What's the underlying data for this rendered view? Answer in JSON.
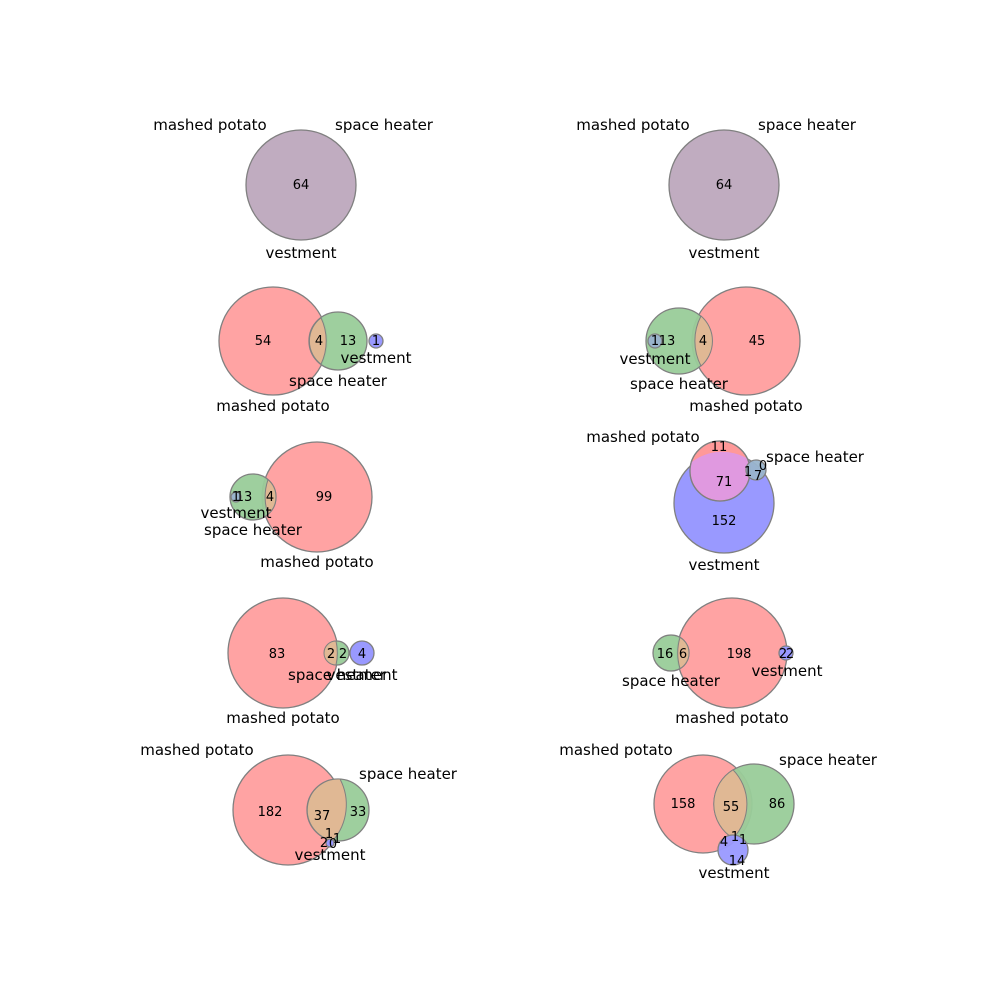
{
  "colors": {
    "mashed_potato": "#ff9999",
    "space_heater": "#99cc99",
    "vestment": "#9999ff",
    "overlap_mp_sh": "#e0b894",
    "overlap_mp_v": "#e099e0",
    "overlap_sh_v": "#99b4cc",
    "overlap_all": "#c0acc0",
    "outline": "#808080"
  },
  "set_names": [
    "mashed potato",
    "space heater",
    "vestment"
  ],
  "diagrams": [
    {
      "id": "d1",
      "regions": [
        {
          "key": "all",
          "value": "64"
        }
      ]
    },
    {
      "id": "d2",
      "regions": [
        {
          "key": "all",
          "value": "64"
        }
      ]
    },
    {
      "id": "d3",
      "regions": [
        {
          "key": "mp_only",
          "value": "54"
        },
        {
          "key": "mp_sh",
          "value": "4"
        },
        {
          "key": "sh_only",
          "value": "13"
        },
        {
          "key": "v_only",
          "value": "1"
        }
      ]
    },
    {
      "id": "d4",
      "regions": [
        {
          "key": "v_only",
          "value": "1"
        },
        {
          "key": "sh_only",
          "value": "13"
        },
        {
          "key": "mp_sh",
          "value": "4"
        },
        {
          "key": "mp_only",
          "value": "45"
        }
      ]
    },
    {
      "id": "d5",
      "regions": [
        {
          "key": "v_only",
          "value": "1"
        },
        {
          "key": "sh_only",
          "value": "13"
        },
        {
          "key": "mp_sh",
          "value": "4"
        },
        {
          "key": "mp_only",
          "value": "99"
        }
      ]
    },
    {
      "id": "d6",
      "regions": [
        {
          "key": "mp_only",
          "value": "11"
        },
        {
          "key": "sh_only",
          "value": "0"
        },
        {
          "key": "mp_sh_v",
          "value": "1"
        },
        {
          "key": "sh_v",
          "value": "7"
        },
        {
          "key": "mp_v",
          "value": "71"
        },
        {
          "key": "v_only",
          "value": "152"
        }
      ]
    },
    {
      "id": "d7",
      "regions": [
        {
          "key": "mp_only",
          "value": "83"
        },
        {
          "key": "mp_sh",
          "value": "2"
        },
        {
          "key": "sh_only",
          "value": "2"
        },
        {
          "key": "v_only",
          "value": "4"
        }
      ]
    },
    {
      "id": "d8",
      "regions": [
        {
          "key": "sh_only",
          "value": "16"
        },
        {
          "key": "mp_sh",
          "value": "6"
        },
        {
          "key": "mp_only",
          "value": "198"
        },
        {
          "key": "mp_v",
          "value": "2"
        },
        {
          "key": "v_only",
          "value": "2"
        }
      ]
    },
    {
      "id": "d9",
      "regions": [
        {
          "key": "mp_only",
          "value": "182"
        },
        {
          "key": "mp_sh",
          "value": "37"
        },
        {
          "key": "sh_only",
          "value": "33"
        },
        {
          "key": "mp_sh_v",
          "value": "1"
        },
        {
          "key": "sh_v",
          "value": "1"
        },
        {
          "key": "mp_v",
          "value": "2"
        },
        {
          "key": "v_only",
          "value": "0"
        }
      ]
    },
    {
      "id": "d10",
      "regions": [
        {
          "key": "mp_only",
          "value": "158"
        },
        {
          "key": "mp_sh",
          "value": "55"
        },
        {
          "key": "sh_only",
          "value": "86"
        },
        {
          "key": "mp_v",
          "value": "4"
        },
        {
          "key": "mp_sh_v",
          "value": "1"
        },
        {
          "key": "sh_v",
          "value": "1"
        },
        {
          "key": "v_only",
          "value": "14"
        }
      ]
    }
  ]
}
